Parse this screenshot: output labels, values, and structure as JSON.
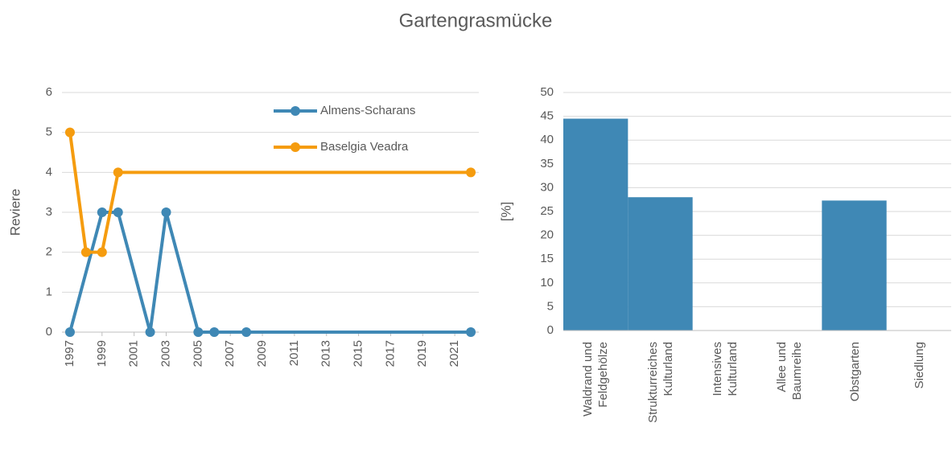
{
  "title": "Gartengrasmücke",
  "chart_data": [
    {
      "type": "line",
      "ylabel": "Reviere",
      "xlim": [
        1996.5,
        2022.5
      ],
      "xticks": [
        1997,
        1999,
        2001,
        2003,
        2005,
        2007,
        2009,
        2011,
        2013,
        2015,
        2017,
        2019,
        2021
      ],
      "ylim": [
        0,
        6
      ],
      "yticks": [
        0,
        1,
        2,
        3,
        4,
        5,
        6
      ],
      "grid": true,
      "legend": "upper right",
      "series": [
        {
          "name": "Almens-Scharans",
          "color": "#3f88b5",
          "x": [
            1997,
            1999,
            2000,
            2002,
            2003,
            2005,
            2006,
            2008,
            2022
          ],
          "values": [
            0,
            3,
            3,
            0,
            3,
            0,
            0,
            0,
            0
          ]
        },
        {
          "name": "Baselgia Veadra",
          "color": "#f59c0f",
          "x": [
            1997,
            1998,
            1999,
            2000,
            2022
          ],
          "values": [
            5,
            2,
            2,
            4,
            4
          ]
        }
      ]
    },
    {
      "type": "bar",
      "ylabel": "[%]",
      "color": "#3f88b5",
      "categories": [
        "Waldrand und Feldgehölze",
        "Strukturreiches Kulturland",
        "Intensives Kulturland",
        "Allee und Baumreihe",
        "Obstgarten",
        "Siedlung"
      ],
      "values": [
        44.5,
        28,
        0,
        0,
        27.3,
        0
      ],
      "ylim": [
        0,
        50
      ],
      "yticks": [
        0,
        5,
        10,
        15,
        20,
        25,
        30,
        35,
        40,
        45,
        50
      ],
      "grid": true
    }
  ]
}
